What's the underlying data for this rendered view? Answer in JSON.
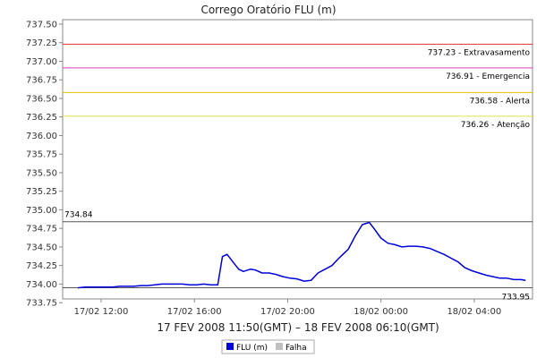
{
  "chart_data": {
    "type": "line",
    "title": "Corrego Oratório FLU (m)",
    "xlabel": "17 FEV 2008 11:50(GMT) – 18 FEV 2008 06:10(GMT)",
    "ylabel": "",
    "x_range_hours": [
      10.35,
      30.5
    ],
    "ylim": [
      733.8,
      737.56
    ],
    "y_ticks": [
      733.75,
      734.0,
      734.25,
      734.5,
      734.75,
      735.0,
      735.25,
      735.5,
      735.75,
      736.0,
      736.25,
      736.5,
      736.75,
      737.0,
      737.25,
      737.5
    ],
    "y_tick_labels": [
      "733.75",
      "734.00",
      "734.25",
      "734.50",
      "734.75",
      "735.00",
      "735.25",
      "735.50",
      "735.75",
      "736.00",
      "736.25",
      "736.50",
      "736.75",
      "737.00",
      "737.25",
      "737.50"
    ],
    "x_ticks_hours": [
      12,
      16,
      20,
      24,
      28
    ],
    "x_tick_labels": [
      "17/02 12:00",
      "17/02 16:00",
      "17/02 20:00",
      "18/02 00:00",
      "18/02 04:00"
    ],
    "grid": false,
    "legend_placement": "bottom-center",
    "thresholds": [
      {
        "value": 737.23,
        "label": "737.23 - Extravasamento",
        "color": "#e03030"
      },
      {
        "value": 736.91,
        "label": "736.91 - Emergencia",
        "color": "#e040c0"
      },
      {
        "value": 736.58,
        "label": "736.58 - Alerta",
        "color": "#e0c000"
      },
      {
        "value": 736.26,
        "label": "736.26 - Atenção",
        "color": "#e8e040"
      }
    ],
    "reference_lines": [
      {
        "value": 734.84,
        "label": "734.84",
        "label_side": "left",
        "color": "#555555"
      },
      {
        "value": 733.95,
        "label": "733.95",
        "label_side": "right",
        "color": "#555555"
      }
    ],
    "series": [
      {
        "name": "FLU (m)",
        "color": "#0000dd",
        "points": [
          [
            11.0,
            733.95
          ],
          [
            11.3,
            733.96
          ],
          [
            11.6,
            733.96
          ],
          [
            11.9,
            733.96
          ],
          [
            12.2,
            733.96
          ],
          [
            12.5,
            733.96
          ],
          [
            12.8,
            733.97
          ],
          [
            13.1,
            733.97
          ],
          [
            13.4,
            733.97
          ],
          [
            13.7,
            733.98
          ],
          [
            14.0,
            733.98
          ],
          [
            14.3,
            733.99
          ],
          [
            14.6,
            734.0
          ],
          [
            14.9,
            734.0
          ],
          [
            15.2,
            734.0
          ],
          [
            15.5,
            734.0
          ],
          [
            15.8,
            733.99
          ],
          [
            16.1,
            733.99
          ],
          [
            16.4,
            734.0
          ],
          [
            16.7,
            733.99
          ],
          [
            17.0,
            733.99
          ],
          [
            17.2,
            734.37
          ],
          [
            17.4,
            734.4
          ],
          [
            17.6,
            734.32
          ],
          [
            17.9,
            734.2
          ],
          [
            18.1,
            734.17
          ],
          [
            18.4,
            734.2
          ],
          [
            18.6,
            734.19
          ],
          [
            18.9,
            734.15
          ],
          [
            19.2,
            734.15
          ],
          [
            19.5,
            734.13
          ],
          [
            19.8,
            734.1
          ],
          [
            20.1,
            734.08
          ],
          [
            20.4,
            734.07
          ],
          [
            20.7,
            734.04
          ],
          [
            21.0,
            734.05
          ],
          [
            21.3,
            734.15
          ],
          [
            21.6,
            734.2
          ],
          [
            21.9,
            734.25
          ],
          [
            22.2,
            734.35
          ],
          [
            22.6,
            734.47
          ],
          [
            22.9,
            734.65
          ],
          [
            23.2,
            734.8
          ],
          [
            23.5,
            734.83
          ],
          [
            23.7,
            734.75
          ],
          [
            24.0,
            734.62
          ],
          [
            24.3,
            734.55
          ],
          [
            24.6,
            734.53
          ],
          [
            24.9,
            734.5
          ],
          [
            25.2,
            734.51
          ],
          [
            25.5,
            734.51
          ],
          [
            25.8,
            734.5
          ],
          [
            26.1,
            734.48
          ],
          [
            26.4,
            734.44
          ],
          [
            26.7,
            734.4
          ],
          [
            27.0,
            734.35
          ],
          [
            27.3,
            734.3
          ],
          [
            27.6,
            734.22
          ],
          [
            27.9,
            734.18
          ],
          [
            28.2,
            734.15
          ],
          [
            28.5,
            734.12
          ],
          [
            28.8,
            734.1
          ],
          [
            29.1,
            734.08
          ],
          [
            29.4,
            734.08
          ],
          [
            29.7,
            734.06
          ],
          [
            30.0,
            734.06
          ],
          [
            30.2,
            734.05
          ]
        ]
      }
    ],
    "legend": [
      {
        "label": "FLU (m)",
        "color": "#0000dd"
      },
      {
        "label": "Falha",
        "color": "#c0c0c0"
      }
    ]
  }
}
